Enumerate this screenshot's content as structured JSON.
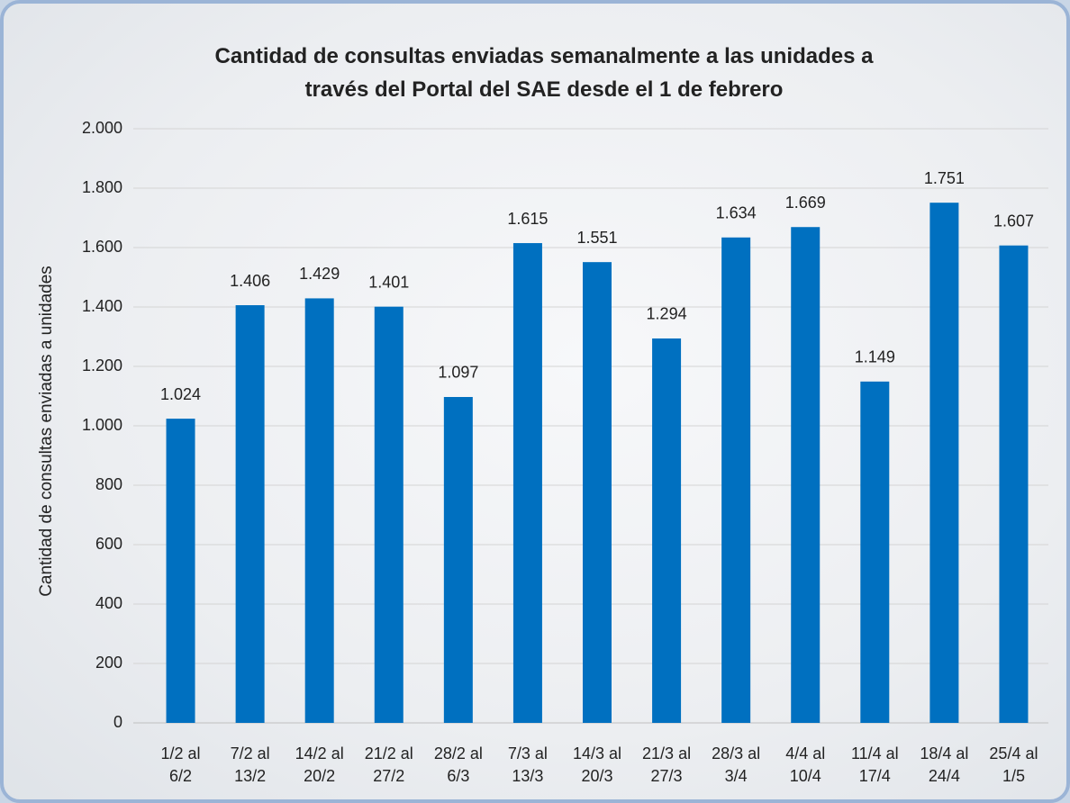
{
  "chart_data": {
    "type": "bar",
    "title": "Cantidad de consultas enviadas semanalmente a las unidades a través del Portal del SAE desde el 1 de febrero",
    "y_label": "Cantidad de consultas enviadas a unidades",
    "categories": [
      "1/2 al 6/2",
      "7/2 al 13/2",
      "14/2 al 20/2",
      "21/2 al 27/2",
      "28/2 al 6/3",
      "7/3 al 13/3",
      "14/3 al 20/3",
      "21/3 al 27/3",
      "28/3 al 3/4",
      "4/4 al 10/4",
      "11/4 al 17/4",
      "18/4 al 24/4",
      "25/4 al 1/5"
    ],
    "values": [
      1024,
      1406,
      1429,
      1401,
      1097,
      1615,
      1551,
      1294,
      1634,
      1669,
      1149,
      1751,
      1607
    ],
    "value_labels": [
      "1.024",
      "1.406",
      "1.429",
      "1.401",
      "1.097",
      "1.615",
      "1.551",
      "1.294",
      "1.634",
      "1.669",
      "1.149",
      "1.751",
      "1.607"
    ],
    "color": "#0070c0",
    "ylim": [
      0,
      2000
    ],
    "yticks": [
      0,
      200,
      400,
      600,
      800,
      {
        "value": 1000,
        "label": "1.000"
      },
      {
        "value": 1200,
        "label": "1.200"
      },
      {
        "value": 1400,
        "label": "1.400"
      },
      {
        "value": 1600,
        "label": "1.600"
      },
      {
        "value": 1800,
        "label": "1.800"
      },
      {
        "value": 2000,
        "label": "2.000"
      }
    ],
    "grid": true
  }
}
